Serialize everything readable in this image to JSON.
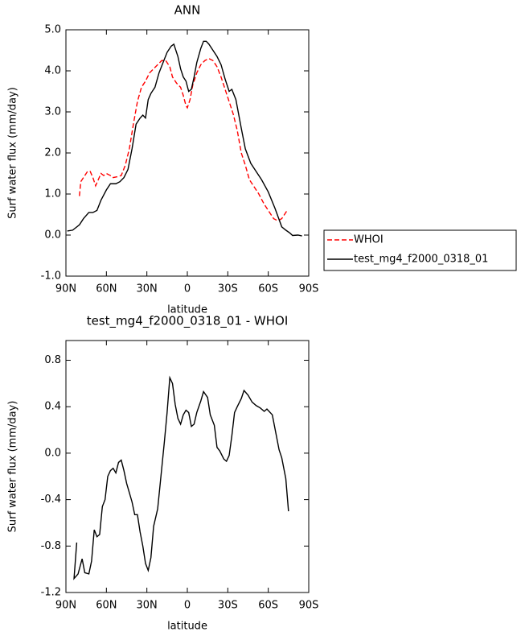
{
  "chart_data": [
    {
      "type": "line",
      "title": "ANN",
      "xlabel": "latitude",
      "ylabel": "Surf water flux (mm/day)",
      "xlim": [
        90,
        -90
      ],
      "xticks": [
        {
          "value": 90,
          "label": "90N"
        },
        {
          "value": 60,
          "label": "60N"
        },
        {
          "value": 30,
          "label": "30N"
        },
        0,
        {
          "value": -30,
          "label": "30S"
        },
        {
          "value": -60,
          "label": "60S"
        },
        {
          "value": -90,
          "label": "90S"
        }
      ],
      "ylim": [
        -1,
        5
      ],
      "yticks": [
        {
          "value": -1,
          "label": "-1.0"
        },
        {
          "value": 0,
          "label": "0.0"
        },
        {
          "value": 1,
          "label": "1.0"
        },
        {
          "value": 2,
          "label": "2.0"
        },
        {
          "value": 3,
          "label": "3.0"
        },
        {
          "value": 4,
          "label": "4.0"
        },
        {
          "value": 5,
          "label": "5.0"
        }
      ],
      "legend": "outside-right",
      "series": [
        {
          "name": "WHOI",
          "color": "#ff0000",
          "dash": true,
          "x": [
            80,
            79,
            77,
            74,
            72,
            70,
            68,
            66,
            64,
            62,
            60,
            57,
            55,
            52,
            49,
            46,
            43,
            40,
            37,
            34,
            31,
            28,
            25,
            22,
            19,
            16,
            13,
            11,
            8,
            5,
            3,
            1,
            0,
            -2,
            -4,
            -7,
            -10,
            -13,
            -16,
            -19,
            -22,
            -25,
            -28,
            -31,
            -34,
            -37,
            -40,
            -43,
            -46,
            -49,
            -53,
            -57,
            -61,
            -64,
            -67,
            -70,
            -72,
            -74
          ],
          "values": [
            0.95,
            1.3,
            1.4,
            1.55,
            1.55,
            1.4,
            1.2,
            1.35,
            1.5,
            1.45,
            1.5,
            1.45,
            1.4,
            1.42,
            1.45,
            1.7,
            2.1,
            2.7,
            3.25,
            3.6,
            3.75,
            3.95,
            4.05,
            4.15,
            4.25,
            4.25,
            4.1,
            3.85,
            3.7,
            3.6,
            3.4,
            3.15,
            3.1,
            3.3,
            3.65,
            3.95,
            4.15,
            4.25,
            4.3,
            4.25,
            4.1,
            3.85,
            3.55,
            3.25,
            2.95,
            2.55,
            2.0,
            1.7,
            1.35,
            1.2,
            1.0,
            0.75,
            0.55,
            0.4,
            0.35,
            0.4,
            0.5,
            0.6
          ]
        },
        {
          "name": "test_mg4_f2000_0318_01",
          "color": "#000000",
          "dash": false,
          "x": [
            89,
            85,
            80,
            77,
            73,
            70,
            67,
            64,
            60,
            57,
            53,
            50,
            47,
            44,
            41,
            38,
            35,
            33,
            31,
            29,
            27,
            24,
            21,
            18,
            15,
            12,
            10,
            7,
            5,
            3,
            1,
            -1,
            -3,
            -5,
            -7,
            -10,
            -12,
            -14,
            -16,
            -19,
            -22,
            -25,
            -28,
            -31,
            -33,
            -36,
            -40,
            -43,
            -47,
            -51,
            -55,
            -60,
            -65,
            -70,
            -73,
            -76,
            -78,
            -82,
            -85
          ],
          "values": [
            0.1,
            0.12,
            0.25,
            0.4,
            0.55,
            0.55,
            0.6,
            0.85,
            1.1,
            1.25,
            1.25,
            1.3,
            1.4,
            1.6,
            2.1,
            2.7,
            2.85,
            2.92,
            2.85,
            3.3,
            3.45,
            3.6,
            3.95,
            4.2,
            4.45,
            4.6,
            4.65,
            4.35,
            4.05,
            3.85,
            3.75,
            3.5,
            3.55,
            3.85,
            4.2,
            4.55,
            4.72,
            4.72,
            4.65,
            4.5,
            4.35,
            4.15,
            3.8,
            3.5,
            3.55,
            3.3,
            2.6,
            2.1,
            1.75,
            1.55,
            1.35,
            1.05,
            0.65,
            0.2,
            0.12,
            0.05,
            -0.01,
            0.0,
            -0.02
          ]
        }
      ]
    },
    {
      "type": "line",
      "title": "test_mg4_f2000_0318_01 - WHOI",
      "xlabel": "latitude",
      "ylabel": "Surf water flux (mm/day)",
      "xlim": [
        90,
        -90
      ],
      "xticks": [
        {
          "value": 90,
          "label": "90N"
        },
        {
          "value": 60,
          "label": "60N"
        },
        {
          "value": 30,
          "label": "30N"
        },
        0,
        {
          "value": -30,
          "label": "30S"
        },
        {
          "value": -60,
          "label": "60S"
        },
        {
          "value": -90,
          "label": "90S"
        }
      ],
      "ylim": [
        -1.2,
        0.97
      ],
      "yticks": [
        -1.2,
        -0.8,
        -0.4,
        {
          "value": 0,
          "label": "0.0"
        },
        0.4,
        0.8
      ],
      "series": [
        {
          "color": "#000000",
          "dash": false,
          "x": [
            82,
            84,
            81,
            78,
            76,
            73,
            71,
            69,
            67,
            65,
            63,
            61,
            59,
            57,
            55,
            53,
            51,
            49,
            47,
            45,
            43,
            41,
            39,
            37,
            35,
            33,
            31,
            29,
            27,
            25,
            22,
            20,
            17,
            15,
            13,
            11,
            9,
            7,
            5,
            3,
            1,
            -1,
            -3,
            -5,
            -7,
            -10,
            -12,
            -15,
            -17,
            -20,
            -22,
            -24,
            -27,
            -29,
            -31,
            -33,
            -35,
            -37,
            -40,
            -42,
            -45,
            -48,
            -51,
            -54,
            -57,
            -59,
            -63,
            -66,
            -68,
            -70,
            -73,
            -75
          ],
          "values": [
            -0.77,
            -1.08,
            -1.04,
            -0.91,
            -1.03,
            -1.04,
            -0.93,
            -0.66,
            -0.72,
            -0.7,
            -0.46,
            -0.4,
            -0.2,
            -0.15,
            -0.13,
            -0.17,
            -0.08,
            -0.06,
            -0.15,
            -0.26,
            -0.34,
            -0.42,
            -0.53,
            -0.53,
            -0.68,
            -0.8,
            -0.95,
            -1.01,
            -0.9,
            -0.63,
            -0.48,
            -0.25,
            0.1,
            0.35,
            0.65,
            0.6,
            0.42,
            0.3,
            0.25,
            0.33,
            0.37,
            0.35,
            0.23,
            0.25,
            0.35,
            0.45,
            0.53,
            0.48,
            0.33,
            0.24,
            0.05,
            0.02,
            -0.05,
            -0.07,
            -0.02,
            0.15,
            0.35,
            0.4,
            0.47,
            0.54,
            0.5,
            0.44,
            0.41,
            0.39,
            0.36,
            0.38,
            0.33,
            0.15,
            0.03,
            -0.04,
            -0.22,
            -0.5
          ]
        }
      ]
    }
  ]
}
